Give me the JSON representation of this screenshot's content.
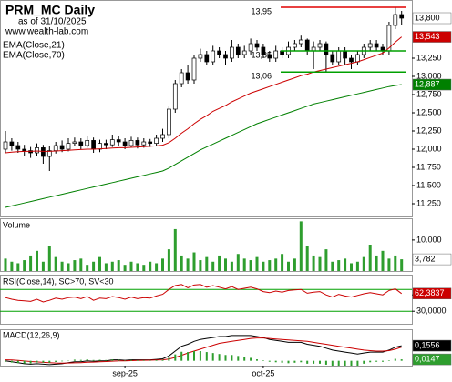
{
  "chart_data": [
    {
      "type": "candlestick",
      "title": "PRM_MC Daily",
      "subtitle": "as of 31/10/2025",
      "source": "www.wealth-lab.com",
      "categories": [
        null,
        null,
        null,
        null,
        null,
        null,
        null,
        null,
        null,
        null,
        null,
        null,
        null,
        null,
        null,
        null,
        null,
        null,
        null,
        "sep-25",
        null,
        null,
        null,
        null,
        null,
        null,
        null,
        null,
        null,
        null,
        null,
        null,
        null,
        null,
        null,
        null,
        null,
        null,
        null,
        null,
        null,
        "oct-25",
        null,
        null,
        null,
        null,
        null,
        null,
        null,
        null,
        null,
        null,
        null,
        null,
        null,
        null,
        null,
        null,
        null,
        null,
        null,
        null,
        null,
        null
      ],
      "open": [
        12000,
        12100,
        12050,
        12000,
        11980,
        11950,
        12020,
        11900,
        11980,
        12050,
        12000,
        12080,
        12100,
        12050,
        12120,
        12000,
        12080,
        12060,
        12130,
        12100,
        12050,
        12120,
        12060,
        12100,
        12080,
        12150,
        12200,
        12550,
        12900,
        13050,
        12950,
        13250,
        13300,
        13200,
        13350,
        13300,
        13250,
        13400,
        13300,
        13350,
        13450,
        13400,
        13300,
        13250,
        13350,
        13300,
        13400,
        13450,
        13500,
        13350,
        13400,
        13450,
        13300,
        13200,
        13350,
        13250,
        13200,
        13300,
        13400,
        13450,
        13400,
        13350,
        13700,
        13850
      ],
      "high": [
        12250,
        12150,
        12100,
        12060,
        12030,
        12080,
        12060,
        12050,
        12100,
        12120,
        12150,
        12160,
        12150,
        12180,
        12160,
        12130,
        12130,
        12200,
        12180,
        12150,
        12170,
        12160,
        12150,
        12140,
        12200,
        12280,
        12600,
        12950,
        13100,
        13150,
        13300,
        13380,
        13350,
        13420,
        13400,
        13350,
        13500,
        13450,
        13420,
        13520,
        13500,
        13450,
        13350,
        13420,
        13400,
        13480,
        13500,
        13560,
        13520,
        13480,
        13500,
        13480,
        13350,
        13400,
        13400,
        13300,
        13350,
        13450,
        13500,
        13500,
        13450,
        13750,
        13950,
        13900
      ],
      "low": [
        11950,
        11980,
        11950,
        11900,
        11880,
        11900,
        11800,
        11700,
        11940,
        11960,
        11970,
        12040,
        12000,
        12020,
        11950,
        11960,
        12000,
        12030,
        12050,
        12000,
        12020,
        12010,
        12020,
        12030,
        12040,
        12100,
        12150,
        12500,
        12850,
        12900,
        12900,
        13200,
        13150,
        13150,
        13250,
        13150,
        13200,
        13250,
        13250,
        13300,
        13350,
        13250,
        13200,
        13200,
        13250,
        13250,
        13350,
        13400,
        13300,
        13100,
        13350,
        13060,
        13150,
        13150,
        13150,
        13100,
        13150,
        13250,
        13350,
        13350,
        13300,
        13300,
        13650,
        13700
      ],
      "close": [
        12100,
        12050,
        12000,
        11980,
        11950,
        12020,
        11900,
        11980,
        12050,
        12000,
        12080,
        12100,
        12050,
        12120,
        12000,
        12080,
        12060,
        12130,
        12100,
        12050,
        12120,
        12060,
        12100,
        12080,
        12150,
        12200,
        12550,
        12900,
        13050,
        12950,
        13250,
        13300,
        13200,
        13350,
        13300,
        13250,
        13400,
        13300,
        13350,
        13450,
        13400,
        13300,
        13250,
        13350,
        13300,
        13400,
        13450,
        13500,
        13350,
        13400,
        13450,
        13300,
        13200,
        13350,
        13250,
        13200,
        13300,
        13400,
        13450,
        13400,
        13350,
        13700,
        13850,
        13800
      ],
      "close_last_label": "13,800",
      "series": [
        {
          "name": "EMA(Close,21)",
          "color": "#cc0000",
          "last_label": "13,543",
          "values": [
            11950,
            11960,
            11965,
            11970,
            11970,
            11975,
            11970,
            11970,
            11975,
            11980,
            11985,
            11990,
            11995,
            12000,
            12000,
            12005,
            12010,
            12015,
            12020,
            12020,
            12025,
            12030,
            12035,
            12040,
            12045,
            12055,
            12090,
            12150,
            12220,
            12280,
            12350,
            12410,
            12460,
            12520,
            12560,
            12600,
            12650,
            12690,
            12730,
            12770,
            12800,
            12830,
            12860,
            12890,
            12920,
            12950,
            12980,
            13010,
            13030,
            13060,
            13080,
            13100,
            13120,
            13140,
            13160,
            13180,
            13200,
            13230,
            13260,
            13290,
            13320,
            13390,
            13470,
            13543
          ]
        },
        {
          "name": "EMA(Close,70)",
          "color": "#008000",
          "last_label": "12,887",
          "values": [
            11200,
            11220,
            11240,
            11260,
            11280,
            11300,
            11320,
            11340,
            11360,
            11380,
            11400,
            11420,
            11440,
            11460,
            11480,
            11500,
            11520,
            11540,
            11560,
            11580,
            11600,
            11620,
            11640,
            11660,
            11680,
            11700,
            11740,
            11790,
            11840,
            11890,
            11940,
            11990,
            12030,
            12070,
            12110,
            12150,
            12190,
            12230,
            12270,
            12310,
            12350,
            12380,
            12410,
            12440,
            12470,
            12500,
            12530,
            12560,
            12590,
            12620,
            12640,
            12660,
            12680,
            12700,
            12720,
            12740,
            12760,
            12780,
            12800,
            12820,
            12840,
            12860,
            12875,
            12887
          ]
        }
      ],
      "ylim": [
        11075,
        14050
      ],
      "yticks": [
        {
          "value": 13250,
          "label": "13,250"
        },
        {
          "value": 13000,
          "label": "13,000"
        },
        {
          "value": 12750,
          "label": "12,750"
        },
        {
          "value": 12500,
          "label": "12,500"
        },
        {
          "value": 12250,
          "label": "12,250"
        },
        {
          "value": 12000,
          "label": "12,000"
        },
        {
          "value": 11750,
          "label": "11,750"
        },
        {
          "value": 11500,
          "label": "11,500"
        },
        {
          "value": 11250,
          "label": "11,250"
        }
      ],
      "levels": [
        {
          "value": 13950,
          "label": "13,95",
          "color": "#e00000"
        },
        {
          "value": 13350,
          "label": "13,35",
          "color": "#00a000"
        },
        {
          "value": 13060,
          "label": "13,06",
          "color": "#00a000"
        }
      ]
    },
    {
      "type": "bar",
      "title": "Volume",
      "color": "#2e9e2e",
      "last_label": "3,782",
      "values": [
        4000,
        3000,
        2500,
        3500,
        5000,
        6500,
        3000,
        8000,
        4500,
        3000,
        2500,
        3500,
        4000,
        2000,
        3000,
        4500,
        2500,
        3000,
        3500,
        2000,
        3000,
        2500,
        2000,
        3000,
        2500,
        4000,
        7000,
        13500,
        5000,
        4000,
        6000,
        3500,
        4500,
        3000,
        5000,
        4000,
        3000,
        5500,
        4000,
        3500,
        4500,
        3000,
        3500,
        4000,
        5500,
        3000,
        4000,
        16000,
        8000,
        5000,
        4500,
        7000,
        3000,
        3500,
        4000,
        2500,
        3000,
        4500,
        8500,
        5000,
        6500,
        4000,
        5000,
        3782
      ],
      "ylim": [
        0,
        17000
      ],
      "yticks": [
        {
          "value": 10000,
          "label": "10.000"
        }
      ]
    },
    {
      "type": "line",
      "title": "RSI(Close,14), SC>70, SV<30",
      "color": "#cc0000",
      "last_label": "62,3837",
      "values": [
        55,
        52,
        50,
        49,
        48,
        52,
        47,
        50,
        54,
        52,
        55,
        56,
        53,
        57,
        50,
        54,
        53,
        57,
        55,
        52,
        56,
        53,
        55,
        54,
        58,
        61,
        70,
        77,
        79,
        73,
        78,
        79,
        74,
        77,
        74,
        71,
        75,
        70,
        72,
        74,
        71,
        66,
        64,
        67,
        65,
        68,
        69,
        70,
        63,
        65,
        66,
        60,
        56,
        61,
        58,
        56,
        59,
        62,
        64,
        62,
        60,
        68,
        71,
        62.3837
      ],
      "ylim": [
        7,
        97
      ],
      "yticks": [
        {
          "value": 60,
          "label": "60,0000"
        },
        {
          "value": 30,
          "label": "30,0000"
        }
      ],
      "levels": [
        {
          "value": 70,
          "color": "#00a000"
        },
        {
          "value": 30,
          "color": "#00a000"
        }
      ]
    },
    {
      "type": "macd",
      "title": "MACD(12,26,9)",
      "series": [
        {
          "color": "#000000",
          "last_label": "0,1556",
          "values": [
            0,
            -0.01,
            -0.02,
            -0.03,
            -0.035,
            -0.03,
            -0.035,
            -0.04,
            -0.035,
            -0.03,
            -0.02,
            -0.01,
            -0.01,
            0,
            -0.005,
            0,
            0,
            0.01,
            0.01,
            0.005,
            0.01,
            0.01,
            0.01,
            0.01,
            0.015,
            0.02,
            0.05,
            0.1,
            0.15,
            0.17,
            0.2,
            0.22,
            0.23,
            0.24,
            0.25,
            0.25,
            0.26,
            0.26,
            0.26,
            0.26,
            0.25,
            0.24,
            0.22,
            0.21,
            0.2,
            0.19,
            0.19,
            0.19,
            0.17,
            0.16,
            0.15,
            0.13,
            0.11,
            0.1,
            0.09,
            0.08,
            0.07,
            0.08,
            0.09,
            0.09,
            0.09,
            0.11,
            0.14,
            0.1556
          ]
        },
        {
          "color": "#cc0000",
          "values": [
            0.01,
            0.008,
            0.004,
            -0.002,
            -0.008,
            -0.012,
            -0.016,
            -0.02,
            -0.023,
            -0.024,
            -0.023,
            -0.021,
            -0.019,
            -0.015,
            -0.013,
            -0.01,
            -0.008,
            -0.004,
            -0.001,
            0,
            0.002,
            0.004,
            0.005,
            0.006,
            0.008,
            0.01,
            0.018,
            0.034,
            0.057,
            0.08,
            0.1,
            0.12,
            0.14,
            0.16,
            0.18,
            0.19,
            0.2,
            0.21,
            0.22,
            0.23,
            0.235,
            0.235,
            0.23,
            0.225,
            0.22,
            0.215,
            0.21,
            0.205,
            0.2,
            0.19,
            0.18,
            0.17,
            0.16,
            0.15,
            0.14,
            0.13,
            0.12,
            0.11,
            0.105,
            0.1,
            0.1,
            0.105,
            0.12,
            0.1409
          ]
        },
        {
          "color": "#2e9e2e",
          "last_label": "0,0147",
          "bars": true,
          "values": [
            -0.01,
            -0.018,
            -0.024,
            -0.028,
            -0.027,
            -0.018,
            -0.019,
            -0.02,
            -0.012,
            -0.006,
            0.003,
            0.011,
            0.009,
            0.015,
            0.008,
            0.01,
            0.008,
            0.014,
            0.011,
            0.005,
            0.008,
            0.006,
            0.005,
            0.004,
            0.007,
            0.01,
            0.032,
            0.066,
            0.093,
            0.09,
            0.1,
            0.1,
            0.09,
            0.08,
            0.07,
            0.06,
            0.06,
            0.05,
            0.04,
            0.03,
            0.015,
            0.005,
            -0.01,
            -0.015,
            -0.02,
            -0.025,
            -0.02,
            -0.015,
            -0.03,
            -0.03,
            -0.03,
            -0.04,
            -0.05,
            -0.05,
            -0.05,
            -0.05,
            -0.05,
            -0.03,
            -0.015,
            -0.01,
            -0.01,
            0.005,
            0.02,
            0.0147
          ]
        }
      ],
      "ylim": [
        -0.05,
        0.325
      ]
    }
  ]
}
